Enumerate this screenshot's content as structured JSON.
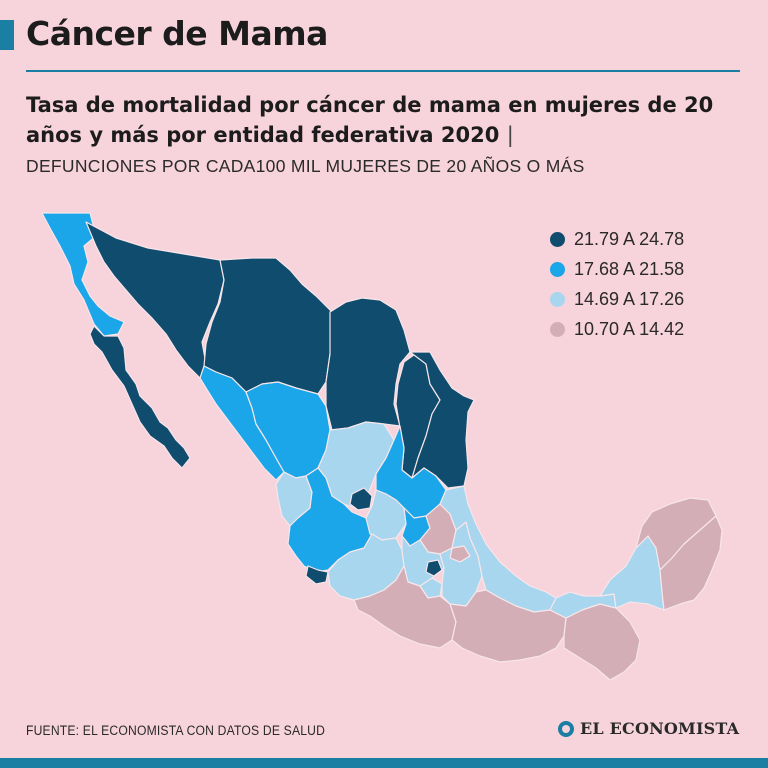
{
  "header": {
    "title": "Cáncer de Mama",
    "subtitle": "Tasa de mortalidad por cáncer de mama en mujeres de 20 años y más por entidad federativa 2020",
    "subtitle_separator": "|",
    "units": "DEFUNCIONES POR CADA100 MIL MUJERES DE 20 AÑOS O MÁS"
  },
  "legend": [
    {
      "label": "21.79 A 24.78",
      "color": "#0f4c6e"
    },
    {
      "label": "17.68 A 21.58",
      "color": "#1aa6e8"
    },
    {
      "label": "14.69 A 17.26",
      "color": "#a7d6ee"
    },
    {
      "label": "10.70 A 14.42",
      "color": "#d4aeb6"
    }
  ],
  "map": {
    "border_color": "#f7e6ea",
    "classes": {
      "Baja California": "21.58-",
      "Baja California Sur": "24.78",
      "Sonora": "24.78",
      "Chihuahua": "24.78",
      "Coahuila": "24.78",
      "Nuevo León": "24.78",
      "Tamaulipas": "24.78",
      "Sinaloa": "21.58",
      "Durango": "21.58",
      "Zacatecas": "17.26",
      "Nayarit": "17.26",
      "Jalisco": "21.58",
      "Colima": "24.78",
      "Aguascalientes": "24.78",
      "San Luis Potosí": "21.58",
      "Guanajuato": "17.26",
      "Querétaro": "21.58",
      "Hidalgo": "14.42",
      "Michoacán": "17.26",
      "Estado de México": "17.26",
      "Ciudad de México": "24.78",
      "Morelos": "17.26",
      "Tlaxcala": "14.42",
      "Puebla": "17.26",
      "Veracruz": "17.26",
      "Guerrero": "14.42",
      "Oaxaca": "14.42",
      "Chiapas": "14.42",
      "Tabasco": "17.26",
      "Campeche": "17.26",
      "Yucatán": "14.42",
      "Quintana Roo": "14.42"
    }
  },
  "footer": {
    "source": "FUENTE: EL ECONOMISTA CON DATOS DE SALUD",
    "brand": "EL ECONOMISTA"
  }
}
